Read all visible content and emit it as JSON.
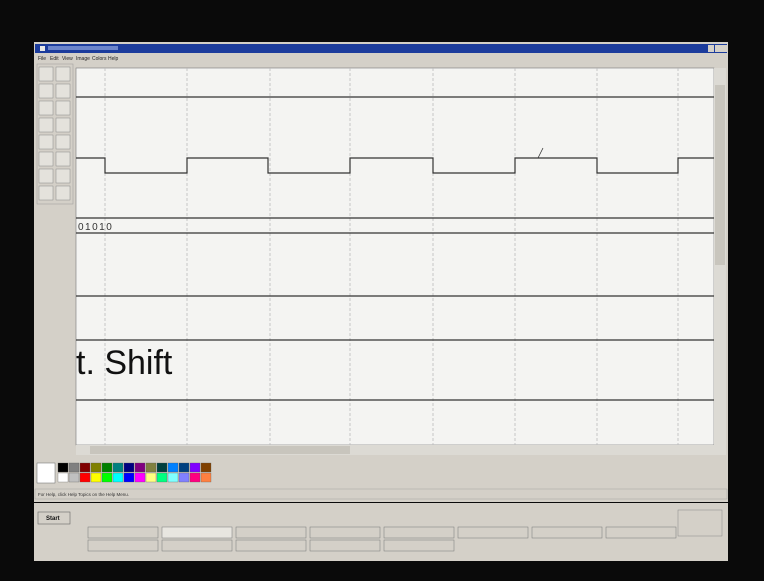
{
  "menu": [
    "File",
    "Edit",
    "View",
    "Image",
    "Colors",
    "Help"
  ],
  "canvas": {
    "bits": "01010",
    "caption": "t. Shift"
  },
  "status": "For Help, click Help Topics on the Help Menu.",
  "taskbar": {
    "start": "Start"
  }
}
